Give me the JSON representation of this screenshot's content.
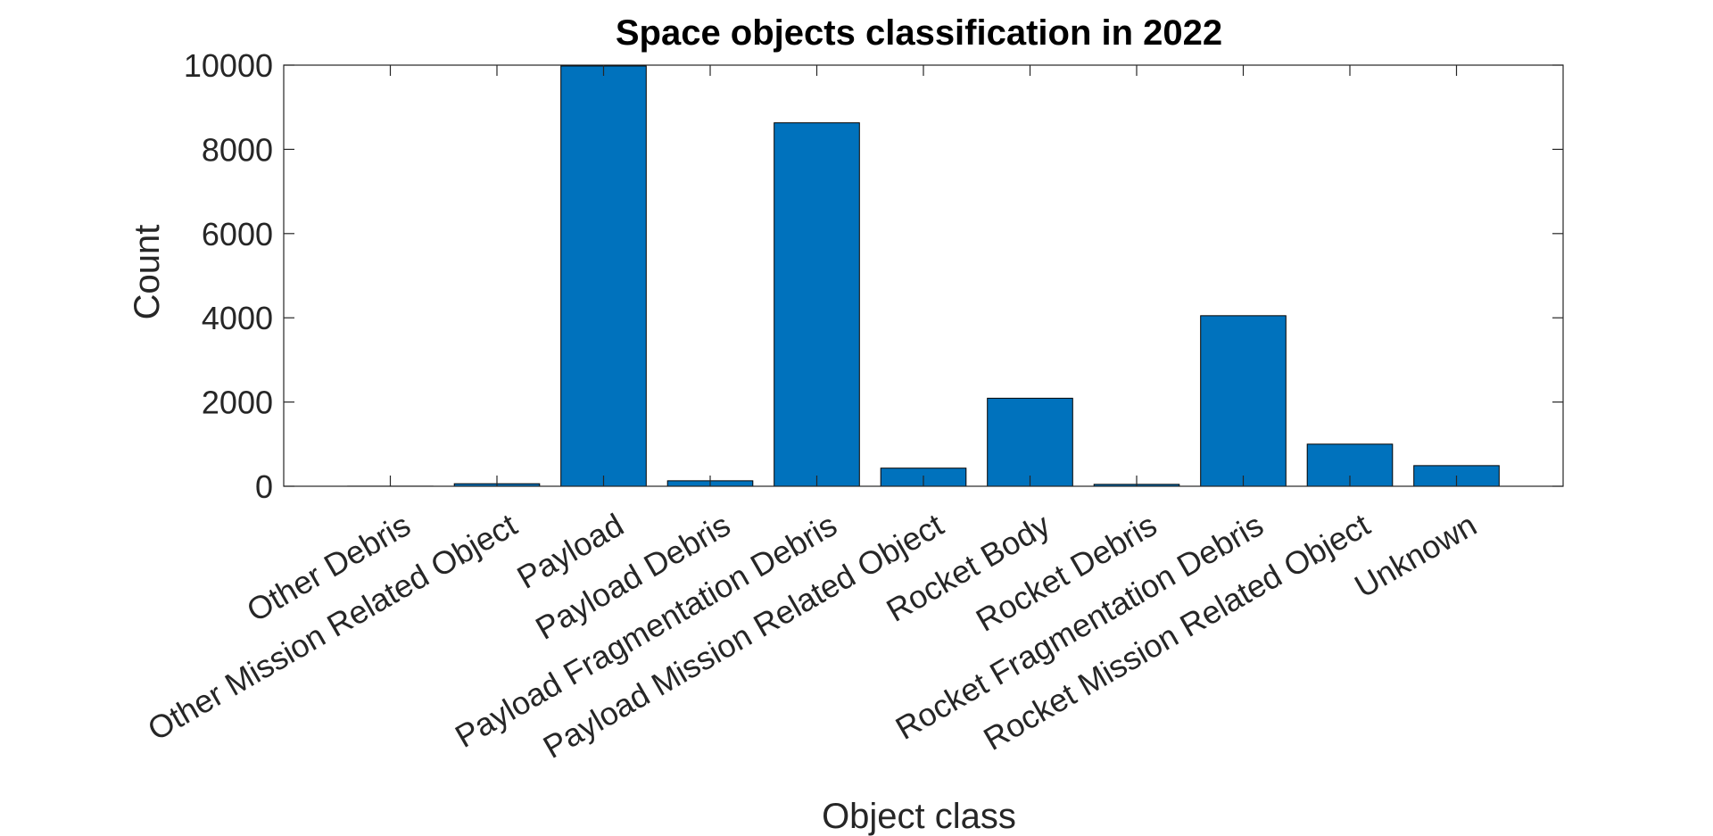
{
  "chart_data": {
    "type": "bar",
    "title": "Space objects classification in 2022",
    "xlabel": "Object class",
    "ylabel": "Count",
    "ylim": [
      0,
      10000
    ],
    "yticks": [
      "0",
      "2000",
      "4000",
      "6000",
      "8000",
      "10000"
    ],
    "categories": [
      "Other Debris",
      "Other Mission Related Object",
      "Payload",
      "Payload Debris",
      "Payload Fragmentation Debris",
      "Payload Mission Related Object",
      "Rocket Body",
      "Rocket Debris",
      "Rocket Fragmentation Debris",
      "Rocket Mission Related Object",
      "Unknown"
    ],
    "values": [
      2,
      60,
      9980,
      130,
      8630,
      430,
      2090,
      45,
      4050,
      1000,
      490
    ],
    "bar_color": "#0072BD",
    "grid": false,
    "legend": "none"
  }
}
